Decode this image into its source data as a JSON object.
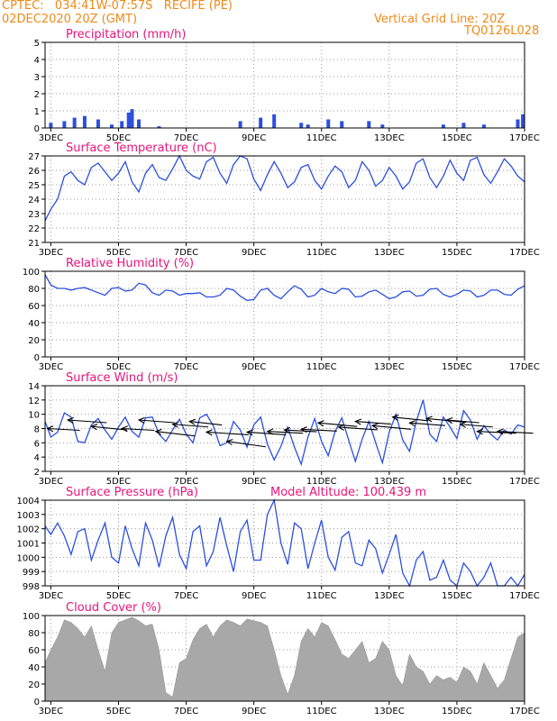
{
  "header": {
    "line1": "CPTEC:   034:41W-07:57S   RECIFE (PE)",
    "line2": "02DEC2020 20Z (GMT)",
    "grid_note": "Vertical Grid Line: 20Z",
    "code": "TQ0126L028"
  },
  "colors": {
    "header": "#ef8a1a",
    "title": "#e8147a",
    "series": "#2b4fe0",
    "cloud": "#a8a8a8",
    "wind_arrow": "#000000"
  },
  "x_axis": {
    "ticks": [
      "3DEC",
      "5DEC",
      "7DEC",
      "9DEC",
      "11DEC",
      "13DEC",
      "15DEC",
      "17DEC"
    ],
    "tick_days": [
      3,
      5,
      7,
      9,
      11,
      13,
      15,
      17
    ],
    "range_days": [
      2.83,
      17.0
    ]
  },
  "chart_data": [
    {
      "id": "precip",
      "type": "bar",
      "title": "Precipitation (mm/h)",
      "ylim": [
        0,
        5
      ],
      "yticks": [
        0,
        1,
        2,
        3,
        4,
        5
      ],
      "x": [
        3.0,
        3.4,
        3.7,
        4.0,
        4.4,
        4.8,
        5.1,
        5.3,
        5.4,
        5.6,
        6.2,
        8.6,
        9.2,
        9.6,
        10.4,
        10.6,
        11.2,
        11.6,
        12.4,
        12.8,
        14.6,
        15.2,
        15.8,
        16.8,
        16.95
      ],
      "values": [
        0.3,
        0.4,
        0.6,
        0.7,
        0.5,
        0.2,
        0.4,
        0.9,
        1.1,
        0.5,
        0.1,
        0.4,
        0.6,
        0.8,
        0.3,
        0.2,
        0.5,
        0.4,
        0.4,
        0.2,
        0.2,
        0.3,
        0.2,
        0.5,
        0.8
      ]
    },
    {
      "id": "temp",
      "type": "line",
      "title": "Surface Temperature (nC)",
      "ylim": [
        21,
        27
      ],
      "yticks": [
        21,
        22,
        23,
        24,
        25,
        26,
        27
      ],
      "x": [
        2.83,
        3.0,
        3.2,
        3.4,
        3.6,
        3.8,
        4.0,
        4.2,
        4.4,
        4.6,
        4.8,
        5.0,
        5.2,
        5.4,
        5.6,
        5.8,
        6.0,
        6.2,
        6.4,
        6.6,
        6.8,
        7.0,
        7.2,
        7.4,
        7.6,
        7.8,
        8.0,
        8.2,
        8.4,
        8.6,
        8.8,
        9.0,
        9.2,
        9.4,
        9.6,
        9.8,
        10.0,
        10.2,
        10.4,
        10.6,
        10.8,
        11.0,
        11.2,
        11.4,
        11.6,
        11.8,
        12.0,
        12.2,
        12.4,
        12.6,
        12.8,
        13.0,
        13.2,
        13.4,
        13.6,
        13.8,
        14.0,
        14.2,
        14.4,
        14.6,
        14.8,
        15.0,
        15.2,
        15.4,
        15.6,
        15.8,
        16.0,
        16.2,
        16.4,
        16.6,
        16.8,
        17.0
      ],
      "values": [
        22.5,
        23.3,
        24.0,
        25.6,
        25.9,
        25.3,
        25.0,
        26.2,
        26.5,
        25.9,
        25.3,
        25.8,
        26.6,
        25.2,
        24.5,
        25.8,
        26.4,
        25.5,
        25.3,
        26.1,
        27.0,
        26.0,
        25.6,
        25.4,
        26.6,
        26.9,
        25.8,
        25.1,
        26.4,
        27.1,
        26.8,
        25.4,
        24.6,
        25.7,
        26.6,
        25.8,
        24.8,
        25.2,
        26.2,
        26.4,
        25.3,
        24.7,
        25.6,
        26.3,
        25.9,
        24.8,
        25.3,
        26.6,
        26.0,
        24.9,
        25.3,
        26.2,
        25.6,
        24.7,
        25.2,
        26.5,
        26.8,
        25.5,
        24.8,
        25.6,
        26.7,
        25.8,
        25.3,
        26.7,
        26.9,
        25.7,
        25.1,
        25.9,
        26.8,
        26.3,
        25.6,
        25.2
      ]
    },
    {
      "id": "rh",
      "type": "line",
      "title": "Relative Humidity (%)",
      "ylim": [
        0,
        100
      ],
      "yticks": [
        0,
        20,
        40,
        60,
        80,
        100
      ],
      "x": [
        2.83,
        3.0,
        3.2,
        3.4,
        3.6,
        3.8,
        4.0,
        4.2,
        4.4,
        4.6,
        4.8,
        5.0,
        5.2,
        5.4,
        5.6,
        5.8,
        6.0,
        6.2,
        6.4,
        6.6,
        6.8,
        7.0,
        7.2,
        7.4,
        7.6,
        7.8,
        8.0,
        8.2,
        8.4,
        8.6,
        8.8,
        9.0,
        9.2,
        9.4,
        9.6,
        9.8,
        10.0,
        10.2,
        10.4,
        10.6,
        10.8,
        11.0,
        11.2,
        11.4,
        11.6,
        11.8,
        12.0,
        12.2,
        12.4,
        12.6,
        12.8,
        13.0,
        13.2,
        13.4,
        13.6,
        13.8,
        14.0,
        14.2,
        14.4,
        14.6,
        14.8,
        15.0,
        15.2,
        15.4,
        15.6,
        15.8,
        16.0,
        16.2,
        16.4,
        16.6,
        16.8,
        17.0
      ],
      "values": [
        96,
        84,
        80,
        80,
        78,
        80,
        81,
        78,
        75,
        72,
        80,
        81,
        77,
        78,
        86,
        84,
        75,
        72,
        78,
        77,
        72,
        74,
        74,
        75,
        70,
        70,
        72,
        80,
        78,
        71,
        66,
        67,
        78,
        80,
        72,
        68,
        76,
        83,
        79,
        70,
        72,
        80,
        76,
        74,
        80,
        79,
        70,
        71,
        76,
        78,
        73,
        68,
        70,
        76,
        77,
        71,
        72,
        79,
        80,
        73,
        70,
        73,
        78,
        77,
        70,
        72,
        78,
        78,
        73,
        72,
        79,
        83
      ]
    },
    {
      "id": "wind",
      "type": "line",
      "title": "Surface Wind (m/s)",
      "ylim": [
        2,
        14
      ],
      "yticks": [
        2,
        4,
        6,
        8,
        10,
        12,
        14
      ],
      "x": [
        2.83,
        3.0,
        3.2,
        3.4,
        3.6,
        3.8,
        4.0,
        4.2,
        4.4,
        4.6,
        4.8,
        5.0,
        5.2,
        5.4,
        5.6,
        5.8,
        6.0,
        6.2,
        6.4,
        6.6,
        6.8,
        7.0,
        7.2,
        7.4,
        7.6,
        7.8,
        8.0,
        8.2,
        8.4,
        8.6,
        8.8,
        9.0,
        9.2,
        9.4,
        9.6,
        9.8,
        10.0,
        10.2,
        10.4,
        10.6,
        10.8,
        11.0,
        11.2,
        11.4,
        11.6,
        11.8,
        12.0,
        12.2,
        12.4,
        12.6,
        12.8,
        13.0,
        13.2,
        13.4,
        13.6,
        13.8,
        14.0,
        14.2,
        14.4,
        14.6,
        14.8,
        15.0,
        15.2,
        15.4,
        15.6,
        15.8,
        16.0,
        16.2,
        16.4,
        16.6,
        16.8,
        17.0
      ],
      "values": [
        9.0,
        6.8,
        7.5,
        10.2,
        9.6,
        6.2,
        6.0,
        8.5,
        9.4,
        7.8,
        6.5,
        8.2,
        9.6,
        7.6,
        6.8,
        9.5,
        9.6,
        7.2,
        6.2,
        7.8,
        9.3,
        7.2,
        6.0,
        9.5,
        10.0,
        8.4,
        5.6,
        6.0,
        9.0,
        7.8,
        5.4,
        8.5,
        9.6,
        5.8,
        3.6,
        5.5,
        8.2,
        5.4,
        3.0,
        6.8,
        9.4,
        6.2,
        4.2,
        7.6,
        9.5,
        6.4,
        3.4,
        6.5,
        9.0,
        6.0,
        3.2,
        7.5,
        10.0,
        6.4,
        4.8,
        9.0,
        12.0,
        7.2,
        6.2,
        9.6,
        8.2,
        6.6,
        10.5,
        9.2,
        6.5,
        8.4,
        7.2,
        6.4,
        7.8,
        7.2,
        8.5,
        8.2
      ],
      "arrows": [
        {
          "x": 2.9,
          "y": 8.0,
          "dx": 1,
          "dy": 0.2
        },
        {
          "x": 3.5,
          "y": 9.2,
          "dx": 1.2,
          "dy": 0.3
        },
        {
          "x": 4.2,
          "y": 8.3,
          "dx": 1.1,
          "dy": 0.4
        },
        {
          "x": 5.1,
          "y": 8.0,
          "dx": 1.0,
          "dy": 0.2
        },
        {
          "x": 5.6,
          "y": 9.2,
          "dx": 1.1,
          "dy": 0.3
        },
        {
          "x": 6.1,
          "y": 7.6,
          "dx": 1.2,
          "dy": 0.5
        },
        {
          "x": 6.6,
          "y": 8.6,
          "dx": 1.1,
          "dy": 0.3
        },
        {
          "x": 7.1,
          "y": 9.0,
          "dx": 1.0,
          "dy": 0.4
        },
        {
          "x": 7.6,
          "y": 7.5,
          "dx": 1.3,
          "dy": 0.3
        },
        {
          "x": 8.2,
          "y": 6.2,
          "dx": 1.2,
          "dy": 0.6
        },
        {
          "x": 8.8,
          "y": 7.5,
          "dx": 1.2,
          "dy": 0.3
        },
        {
          "x": 9.4,
          "y": 7.6,
          "dx": 1.1,
          "dy": 0.2
        },
        {
          "x": 9.9,
          "y": 7.8,
          "dx": 1.0,
          "dy": 0.2
        },
        {
          "x": 10.4,
          "y": 7.9,
          "dx": 1.1,
          "dy": 0.2
        },
        {
          "x": 10.9,
          "y": 8.8,
          "dx": 1.2,
          "dy": 0.4
        },
        {
          "x": 11.5,
          "y": 8.2,
          "dx": 1.2,
          "dy": 0.3
        },
        {
          "x": 12.0,
          "y": 9.0,
          "dx": 1.1,
          "dy": 0.3
        },
        {
          "x": 12.5,
          "y": 8.4,
          "dx": 1.2,
          "dy": 0.4
        },
        {
          "x": 13.1,
          "y": 9.6,
          "dx": 1.1,
          "dy": 0.4
        },
        {
          "x": 13.6,
          "y": 8.8,
          "dx": 1.1,
          "dy": 0.3
        },
        {
          "x": 14.1,
          "y": 9.4,
          "dx": 1.2,
          "dy": 0.4
        },
        {
          "x": 14.7,
          "y": 9.2,
          "dx": 1.0,
          "dy": 0.3
        },
        {
          "x": 15.1,
          "y": 8.6,
          "dx": 1.0,
          "dy": 0.3
        },
        {
          "x": 15.6,
          "y": 7.6,
          "dx": 1.2,
          "dy": 0.2
        },
        {
          "x": 16.2,
          "y": 7.6,
          "dx": 1.1,
          "dy": 0.2
        }
      ]
    },
    {
      "id": "press",
      "type": "line",
      "title": "Surface Pressure (hPa)",
      "subtitle": "Model Altitude: 100.439  m",
      "ylim": [
        998,
        1004
      ],
      "yticks": [
        998,
        999,
        1000,
        1001,
        1002,
        1003,
        1004
      ],
      "x": [
        2.83,
        3.0,
        3.2,
        3.4,
        3.6,
        3.8,
        4.0,
        4.2,
        4.4,
        4.6,
        4.8,
        5.0,
        5.2,
        5.4,
        5.6,
        5.8,
        6.0,
        6.2,
        6.4,
        6.6,
        6.8,
        7.0,
        7.2,
        7.4,
        7.6,
        7.8,
        8.0,
        8.2,
        8.4,
        8.6,
        8.8,
        9.0,
        9.2,
        9.4,
        9.6,
        9.8,
        10.0,
        10.2,
        10.4,
        10.6,
        10.8,
        11.0,
        11.2,
        11.4,
        11.6,
        11.8,
        12.0,
        12.2,
        12.4,
        12.6,
        12.8,
        13.0,
        13.2,
        13.4,
        13.6,
        13.8,
        14.0,
        14.2,
        14.4,
        14.6,
        14.8,
        15.0,
        15.2,
        15.4,
        15.6,
        15.8,
        16.0,
        16.2,
        16.4,
        16.6,
        16.8,
        17.0
      ],
      "values": [
        1002.2,
        1001.6,
        1002.4,
        1001.5,
        1000.2,
        1001.8,
        1002.0,
        999.8,
        1001.2,
        1002.4,
        1000.0,
        999.6,
        1002.2,
        1000.6,
        999.4,
        1002.4,
        1001.2,
        999.3,
        1001.5,
        1002.8,
        1000.2,
        999.2,
        1001.8,
        1002.2,
        999.4,
        1000.4,
        1002.8,
        1000.8,
        999.0,
        1001.8,
        1002.6,
        999.8,
        999.8,
        1003.0,
        1004.2,
        1001.0,
        999.5,
        1002.4,
        1002.0,
        999.2,
        1001.0,
        1002.6,
        1000.0,
        999.1,
        1001.4,
        1001.8,
        999.6,
        999.4,
        1001.2,
        1000.6,
        998.9,
        1000.2,
        1001.6,
        998.9,
        997.5,
        999.8,
        1000.4,
        998.4,
        998.6,
        999.8,
        998.4,
        997.8,
        999.6,
        999.0,
        997.6,
        998.6,
        999.6,
        997.8,
        997.6,
        998.6,
        997.8,
        998.8
      ]
    },
    {
      "id": "cloud",
      "type": "area",
      "title": "Cloud Cover (%)",
      "ylim": [
        0,
        100
      ],
      "yticks": [
        0,
        20,
        40,
        60,
        80,
        100
      ],
      "x": [
        2.83,
        3.0,
        3.2,
        3.4,
        3.6,
        3.8,
        4.0,
        4.2,
        4.4,
        4.6,
        4.8,
        5.0,
        5.2,
        5.4,
        5.6,
        5.8,
        6.0,
        6.2,
        6.4,
        6.6,
        6.8,
        7.0,
        7.2,
        7.4,
        7.6,
        7.8,
        8.0,
        8.2,
        8.4,
        8.6,
        8.8,
        9.0,
        9.2,
        9.4,
        9.6,
        9.8,
        10.0,
        10.2,
        10.4,
        10.6,
        10.8,
        11.0,
        11.2,
        11.4,
        11.6,
        11.8,
        12.0,
        12.2,
        12.4,
        12.6,
        12.8,
        13.0,
        13.2,
        13.4,
        13.6,
        13.8,
        14.0,
        14.2,
        14.4,
        14.6,
        14.8,
        15.0,
        15.2,
        15.4,
        15.6,
        15.8,
        16.0,
        16.2,
        16.4,
        16.6,
        16.8,
        17.0
      ],
      "values": [
        45,
        60,
        75,
        95,
        92,
        85,
        75,
        88,
        60,
        35,
        80,
        92,
        95,
        98,
        94,
        88,
        90,
        60,
        10,
        5,
        45,
        50,
        72,
        85,
        90,
        75,
        88,
        95,
        92,
        88,
        96,
        94,
        92,
        88,
        60,
        30,
        8,
        30,
        70,
        85,
        75,
        92,
        88,
        72,
        55,
        50,
        60,
        70,
        45,
        50,
        70,
        60,
        30,
        18,
        55,
        40,
        35,
        20,
        30,
        25,
        28,
        22,
        40,
        35,
        20,
        45,
        30,
        15,
        25,
        50,
        75,
        80
      ]
    }
  ]
}
